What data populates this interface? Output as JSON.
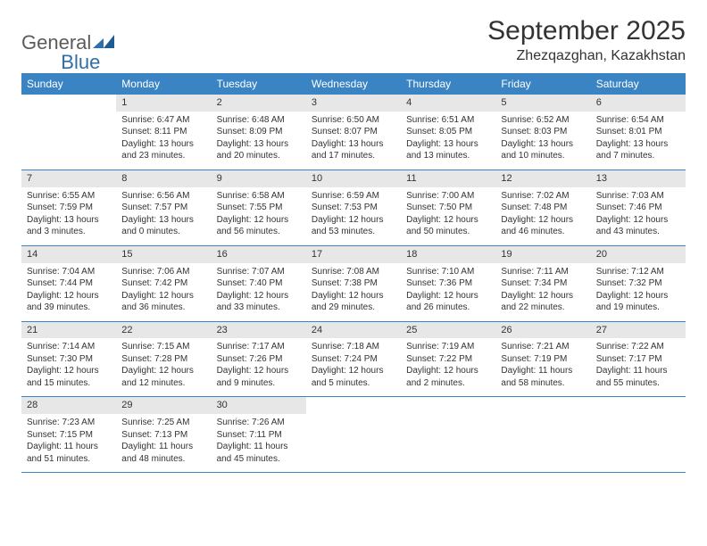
{
  "brand": {
    "text1": "General",
    "text2": "Blue"
  },
  "title": "September 2025",
  "location": "Zhezqazghan, Kazakhstan",
  "colors": {
    "header_bg": "#3b84c4",
    "header_text": "#ffffff",
    "daynum_bg": "#e7e7e7",
    "rule": "#3b84c4",
    "logo_gray": "#5b5b5b",
    "logo_blue": "#2f6fa8"
  },
  "day_names": [
    "Sunday",
    "Monday",
    "Tuesday",
    "Wednesday",
    "Thursday",
    "Friday",
    "Saturday"
  ],
  "weeks": [
    [
      {
        "n": "",
        "sr": "",
        "ss": "",
        "dl": ""
      },
      {
        "n": "1",
        "sr": "Sunrise: 6:47 AM",
        "ss": "Sunset: 8:11 PM",
        "dl": "Daylight: 13 hours and 23 minutes."
      },
      {
        "n": "2",
        "sr": "Sunrise: 6:48 AM",
        "ss": "Sunset: 8:09 PM",
        "dl": "Daylight: 13 hours and 20 minutes."
      },
      {
        "n": "3",
        "sr": "Sunrise: 6:50 AM",
        "ss": "Sunset: 8:07 PM",
        "dl": "Daylight: 13 hours and 17 minutes."
      },
      {
        "n": "4",
        "sr": "Sunrise: 6:51 AM",
        "ss": "Sunset: 8:05 PM",
        "dl": "Daylight: 13 hours and 13 minutes."
      },
      {
        "n": "5",
        "sr": "Sunrise: 6:52 AM",
        "ss": "Sunset: 8:03 PM",
        "dl": "Daylight: 13 hours and 10 minutes."
      },
      {
        "n": "6",
        "sr": "Sunrise: 6:54 AM",
        "ss": "Sunset: 8:01 PM",
        "dl": "Daylight: 13 hours and 7 minutes."
      }
    ],
    [
      {
        "n": "7",
        "sr": "Sunrise: 6:55 AM",
        "ss": "Sunset: 7:59 PM",
        "dl": "Daylight: 13 hours and 3 minutes."
      },
      {
        "n": "8",
        "sr": "Sunrise: 6:56 AM",
        "ss": "Sunset: 7:57 PM",
        "dl": "Daylight: 13 hours and 0 minutes."
      },
      {
        "n": "9",
        "sr": "Sunrise: 6:58 AM",
        "ss": "Sunset: 7:55 PM",
        "dl": "Daylight: 12 hours and 56 minutes."
      },
      {
        "n": "10",
        "sr": "Sunrise: 6:59 AM",
        "ss": "Sunset: 7:53 PM",
        "dl": "Daylight: 12 hours and 53 minutes."
      },
      {
        "n": "11",
        "sr": "Sunrise: 7:00 AM",
        "ss": "Sunset: 7:50 PM",
        "dl": "Daylight: 12 hours and 50 minutes."
      },
      {
        "n": "12",
        "sr": "Sunrise: 7:02 AM",
        "ss": "Sunset: 7:48 PM",
        "dl": "Daylight: 12 hours and 46 minutes."
      },
      {
        "n": "13",
        "sr": "Sunrise: 7:03 AM",
        "ss": "Sunset: 7:46 PM",
        "dl": "Daylight: 12 hours and 43 minutes."
      }
    ],
    [
      {
        "n": "14",
        "sr": "Sunrise: 7:04 AM",
        "ss": "Sunset: 7:44 PM",
        "dl": "Daylight: 12 hours and 39 minutes."
      },
      {
        "n": "15",
        "sr": "Sunrise: 7:06 AM",
        "ss": "Sunset: 7:42 PM",
        "dl": "Daylight: 12 hours and 36 minutes."
      },
      {
        "n": "16",
        "sr": "Sunrise: 7:07 AM",
        "ss": "Sunset: 7:40 PM",
        "dl": "Daylight: 12 hours and 33 minutes."
      },
      {
        "n": "17",
        "sr": "Sunrise: 7:08 AM",
        "ss": "Sunset: 7:38 PM",
        "dl": "Daylight: 12 hours and 29 minutes."
      },
      {
        "n": "18",
        "sr": "Sunrise: 7:10 AM",
        "ss": "Sunset: 7:36 PM",
        "dl": "Daylight: 12 hours and 26 minutes."
      },
      {
        "n": "19",
        "sr": "Sunrise: 7:11 AM",
        "ss": "Sunset: 7:34 PM",
        "dl": "Daylight: 12 hours and 22 minutes."
      },
      {
        "n": "20",
        "sr": "Sunrise: 7:12 AM",
        "ss": "Sunset: 7:32 PM",
        "dl": "Daylight: 12 hours and 19 minutes."
      }
    ],
    [
      {
        "n": "21",
        "sr": "Sunrise: 7:14 AM",
        "ss": "Sunset: 7:30 PM",
        "dl": "Daylight: 12 hours and 15 minutes."
      },
      {
        "n": "22",
        "sr": "Sunrise: 7:15 AM",
        "ss": "Sunset: 7:28 PM",
        "dl": "Daylight: 12 hours and 12 minutes."
      },
      {
        "n": "23",
        "sr": "Sunrise: 7:17 AM",
        "ss": "Sunset: 7:26 PM",
        "dl": "Daylight: 12 hours and 9 minutes."
      },
      {
        "n": "24",
        "sr": "Sunrise: 7:18 AM",
        "ss": "Sunset: 7:24 PM",
        "dl": "Daylight: 12 hours and 5 minutes."
      },
      {
        "n": "25",
        "sr": "Sunrise: 7:19 AM",
        "ss": "Sunset: 7:22 PM",
        "dl": "Daylight: 12 hours and 2 minutes."
      },
      {
        "n": "26",
        "sr": "Sunrise: 7:21 AM",
        "ss": "Sunset: 7:19 PM",
        "dl": "Daylight: 11 hours and 58 minutes."
      },
      {
        "n": "27",
        "sr": "Sunrise: 7:22 AM",
        "ss": "Sunset: 7:17 PM",
        "dl": "Daylight: 11 hours and 55 minutes."
      }
    ],
    [
      {
        "n": "28",
        "sr": "Sunrise: 7:23 AM",
        "ss": "Sunset: 7:15 PM",
        "dl": "Daylight: 11 hours and 51 minutes."
      },
      {
        "n": "29",
        "sr": "Sunrise: 7:25 AM",
        "ss": "Sunset: 7:13 PM",
        "dl": "Daylight: 11 hours and 48 minutes."
      },
      {
        "n": "30",
        "sr": "Sunrise: 7:26 AM",
        "ss": "Sunset: 7:11 PM",
        "dl": "Daylight: 11 hours and 45 minutes."
      },
      {
        "n": "",
        "sr": "",
        "ss": "",
        "dl": ""
      },
      {
        "n": "",
        "sr": "",
        "ss": "",
        "dl": ""
      },
      {
        "n": "",
        "sr": "",
        "ss": "",
        "dl": ""
      },
      {
        "n": "",
        "sr": "",
        "ss": "",
        "dl": ""
      }
    ]
  ]
}
